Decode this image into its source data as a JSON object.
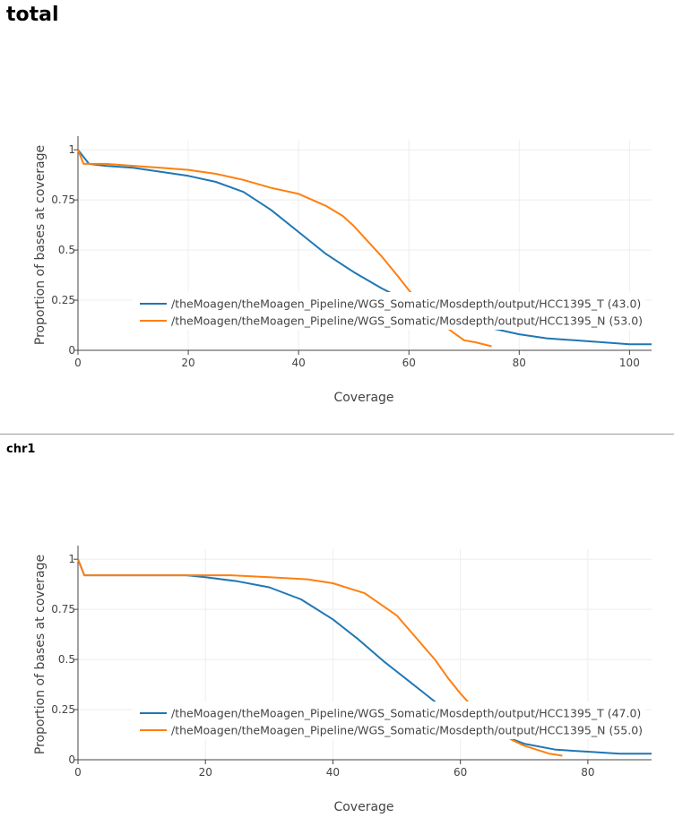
{
  "sections": [
    {
      "title": "total"
    },
    {
      "title": "chr1"
    }
  ],
  "colors": {
    "series_t": "#1f77b4",
    "series_n": "#ff7f0e",
    "grid": "#eeeeee"
  },
  "chart_data": [
    {
      "type": "line",
      "title": "total",
      "xlabel": "Coverage",
      "ylabel": "Proportion of bases at coverage",
      "xlim": [
        0,
        104
      ],
      "ylim": [
        0,
        1.05
      ],
      "xticks": [
        0,
        20,
        40,
        60,
        80,
        100
      ],
      "yticks": [
        0,
        0.25,
        0.5,
        0.75,
        1
      ],
      "ytick_labels": [
        "0",
        "0.25",
        "0.5",
        "0.75",
        "1"
      ],
      "grid": true,
      "legend_position": "bottom-right",
      "series": [
        {
          "name": "/theMoagen/theMoagen_Pipeline/WGS_Somatic/Mosdepth/output/HCC1395_T (43.0)",
          "x": [
            0,
            2,
            5,
            10,
            15,
            20,
            25,
            30,
            35,
            40,
            45,
            50,
            55,
            60,
            65,
            70,
            75,
            80,
            85,
            90,
            95,
            100,
            104
          ],
          "y": [
            1,
            0.93,
            0.92,
            0.91,
            0.89,
            0.87,
            0.84,
            0.79,
            0.7,
            0.59,
            0.48,
            0.39,
            0.31,
            0.24,
            0.18,
            0.14,
            0.11,
            0.08,
            0.06,
            0.05,
            0.04,
            0.03,
            0.03
          ]
        },
        {
          "name": "/theMoagen/theMoagen_Pipeline/WGS_Somatic/Mosdepth/output/HCC1395_N (53.0)",
          "x": [
            0,
            1,
            5,
            10,
            15,
            20,
            25,
            30,
            35,
            40,
            45,
            48,
            50,
            52,
            55,
            58,
            60,
            62,
            65,
            68,
            70,
            72,
            75
          ],
          "y": [
            1,
            0.93,
            0.93,
            0.92,
            0.91,
            0.9,
            0.88,
            0.85,
            0.81,
            0.78,
            0.72,
            0.67,
            0.62,
            0.56,
            0.47,
            0.37,
            0.3,
            0.24,
            0.15,
            0.09,
            0.05,
            0.04,
            0.02
          ]
        }
      ]
    },
    {
      "type": "line",
      "title": "chr1",
      "xlabel": "Coverage",
      "ylabel": "Proportion of bases at coverage",
      "xlim": [
        0,
        90
      ],
      "ylim": [
        0,
        1.05
      ],
      "xticks": [
        0,
        20,
        40,
        60,
        80
      ],
      "yticks": [
        0,
        0.25,
        0.5,
        0.75,
        1
      ],
      "ytick_labels": [
        "0",
        "0.25",
        "0.5",
        "0.75",
        "1"
      ],
      "grid": true,
      "legend_position": "bottom-right",
      "series": [
        {
          "name": "/theMoagen/theMoagen_Pipeline/WGS_Somatic/Mosdepth/output/HCC1395_T (47.0)",
          "x": [
            0,
            1,
            10,
            17,
            20,
            25,
            30,
            35,
            40,
            44,
            48,
            50,
            52,
            54,
            56,
            58,
            60,
            65,
            70,
            75,
            80,
            85,
            90
          ],
          "y": [
            1,
            0.92,
            0.92,
            0.92,
            0.91,
            0.89,
            0.86,
            0.8,
            0.7,
            0.6,
            0.49,
            0.44,
            0.39,
            0.34,
            0.29,
            0.24,
            0.2,
            0.14,
            0.08,
            0.05,
            0.04,
            0.03,
            0.03
          ]
        },
        {
          "name": "/theMoagen/theMoagen_Pipeline/WGS_Somatic/Mosdepth/output/HCC1395_N (55.0)",
          "x": [
            0,
            1,
            10,
            20,
            24,
            30,
            36,
            40,
            45,
            50,
            53,
            56,
            58,
            60,
            62,
            65,
            68,
            70,
            72,
            74,
            76
          ],
          "y": [
            1,
            0.92,
            0.92,
            0.92,
            0.92,
            0.91,
            0.9,
            0.88,
            0.83,
            0.72,
            0.61,
            0.5,
            0.41,
            0.33,
            0.26,
            0.17,
            0.1,
            0.07,
            0.05,
            0.03,
            0.02
          ]
        }
      ]
    }
  ]
}
